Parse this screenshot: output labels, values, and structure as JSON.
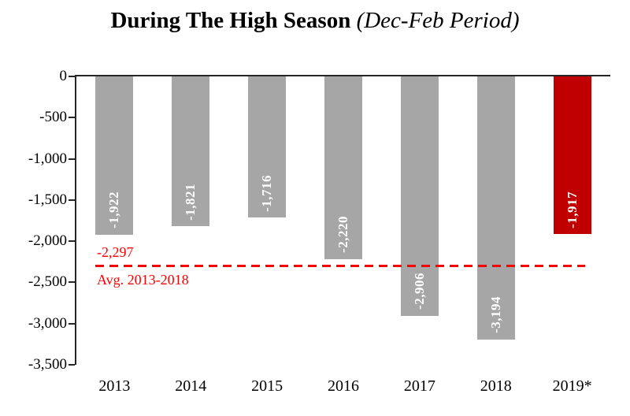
{
  "title": {
    "main": "During The High Season",
    "sub": " (Dec-Feb Period)"
  },
  "chart_data": {
    "type": "bar",
    "title": "During The High Season (Dec-Feb Period)",
    "categories": [
      "2013",
      "2014",
      "2015",
      "2016",
      "2017",
      "2018",
      "2019*"
    ],
    "values": [
      -1922,
      -1821,
      -1716,
      -2220,
      -2906,
      -3194,
      -1917
    ],
    "value_labels": [
      "-1,922",
      "-1,821",
      "-1,716",
      "-2,220",
      "-2,906",
      "-3,194",
      "-1,917"
    ],
    "bar_colors": [
      "#a6a6a6",
      "#a6a6a6",
      "#a6a6a6",
      "#a6a6a6",
      "#a6a6a6",
      "#a6a6a6",
      "#c00000"
    ],
    "ylim": [
      -3500,
      0
    ],
    "yticks": [
      0,
      -500,
      -1000,
      -1500,
      -2000,
      -2500,
      -3000,
      -3500
    ],
    "ytick_labels": [
      "0",
      "-500",
      "-1,000",
      "-1,500",
      "-2,000",
      "-2,500",
      "-3,000",
      "-3,500"
    ],
    "grid": false,
    "legend": "none",
    "avg_line": {
      "value": -2297,
      "label": "-2,297",
      "caption": "Avg. 2013-2018",
      "color": "#ff0000"
    },
    "colors": {
      "bar_default": "#a6a6a6",
      "bar_highlight": "#c00000",
      "axis": "#262626",
      "bar_label_text": "#ffffff"
    }
  }
}
